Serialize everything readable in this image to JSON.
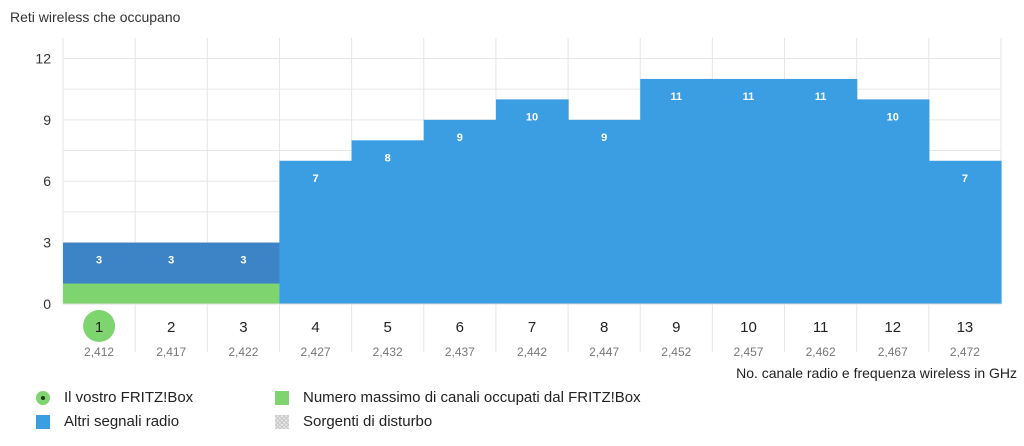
{
  "title": "Reti wireless che occupano",
  "colors": {
    "own_series": "#3d84c6",
    "other_series": "#3b9ee2",
    "fritz_channel": "#7ed56f",
    "grid": "#e6e6e6",
    "axis_text": "#333333",
    "freq_text": "#777777"
  },
  "chart_data": {
    "type": "bar",
    "title": "Reti wireless che occupano",
    "xlabel": "No. canale radio e frequenza wireless in GHz",
    "ylabel": "",
    "ylim": [
      0,
      13
    ],
    "yticks": [
      0,
      3,
      6,
      9,
      12
    ],
    "grid": true,
    "categories": [
      "1",
      "2",
      "3",
      "4",
      "5",
      "6",
      "7",
      "8",
      "9",
      "10",
      "11",
      "12",
      "13"
    ],
    "frequencies": [
      "2,412",
      "2,417",
      "2,422",
      "2,427",
      "2,432",
      "2,437",
      "2,442",
      "2,447",
      "2,452",
      "2,457",
      "2,462",
      "2,467",
      "2,472"
    ],
    "values": [
      3,
      3,
      3,
      7,
      8,
      9,
      10,
      9,
      11,
      11,
      11,
      10,
      7
    ],
    "fritzbox_channel": "1",
    "fritzbox_occupied_channels": [
      "1",
      "2",
      "3"
    ],
    "fritzbox_band_value": 1,
    "legend": [
      {
        "label": "Il vostro FRITZ!Box",
        "icon": "fritzbox-channel-icon"
      },
      {
        "label": "Numero massimo di canali occupati dal FRITZ!Box",
        "icon": "green-swatch"
      },
      {
        "label": "Altri segnali radio",
        "icon": "blue-swatch"
      },
      {
        "label": "Sorgenti di disturbo",
        "icon": "hatched-swatch"
      }
    ]
  }
}
